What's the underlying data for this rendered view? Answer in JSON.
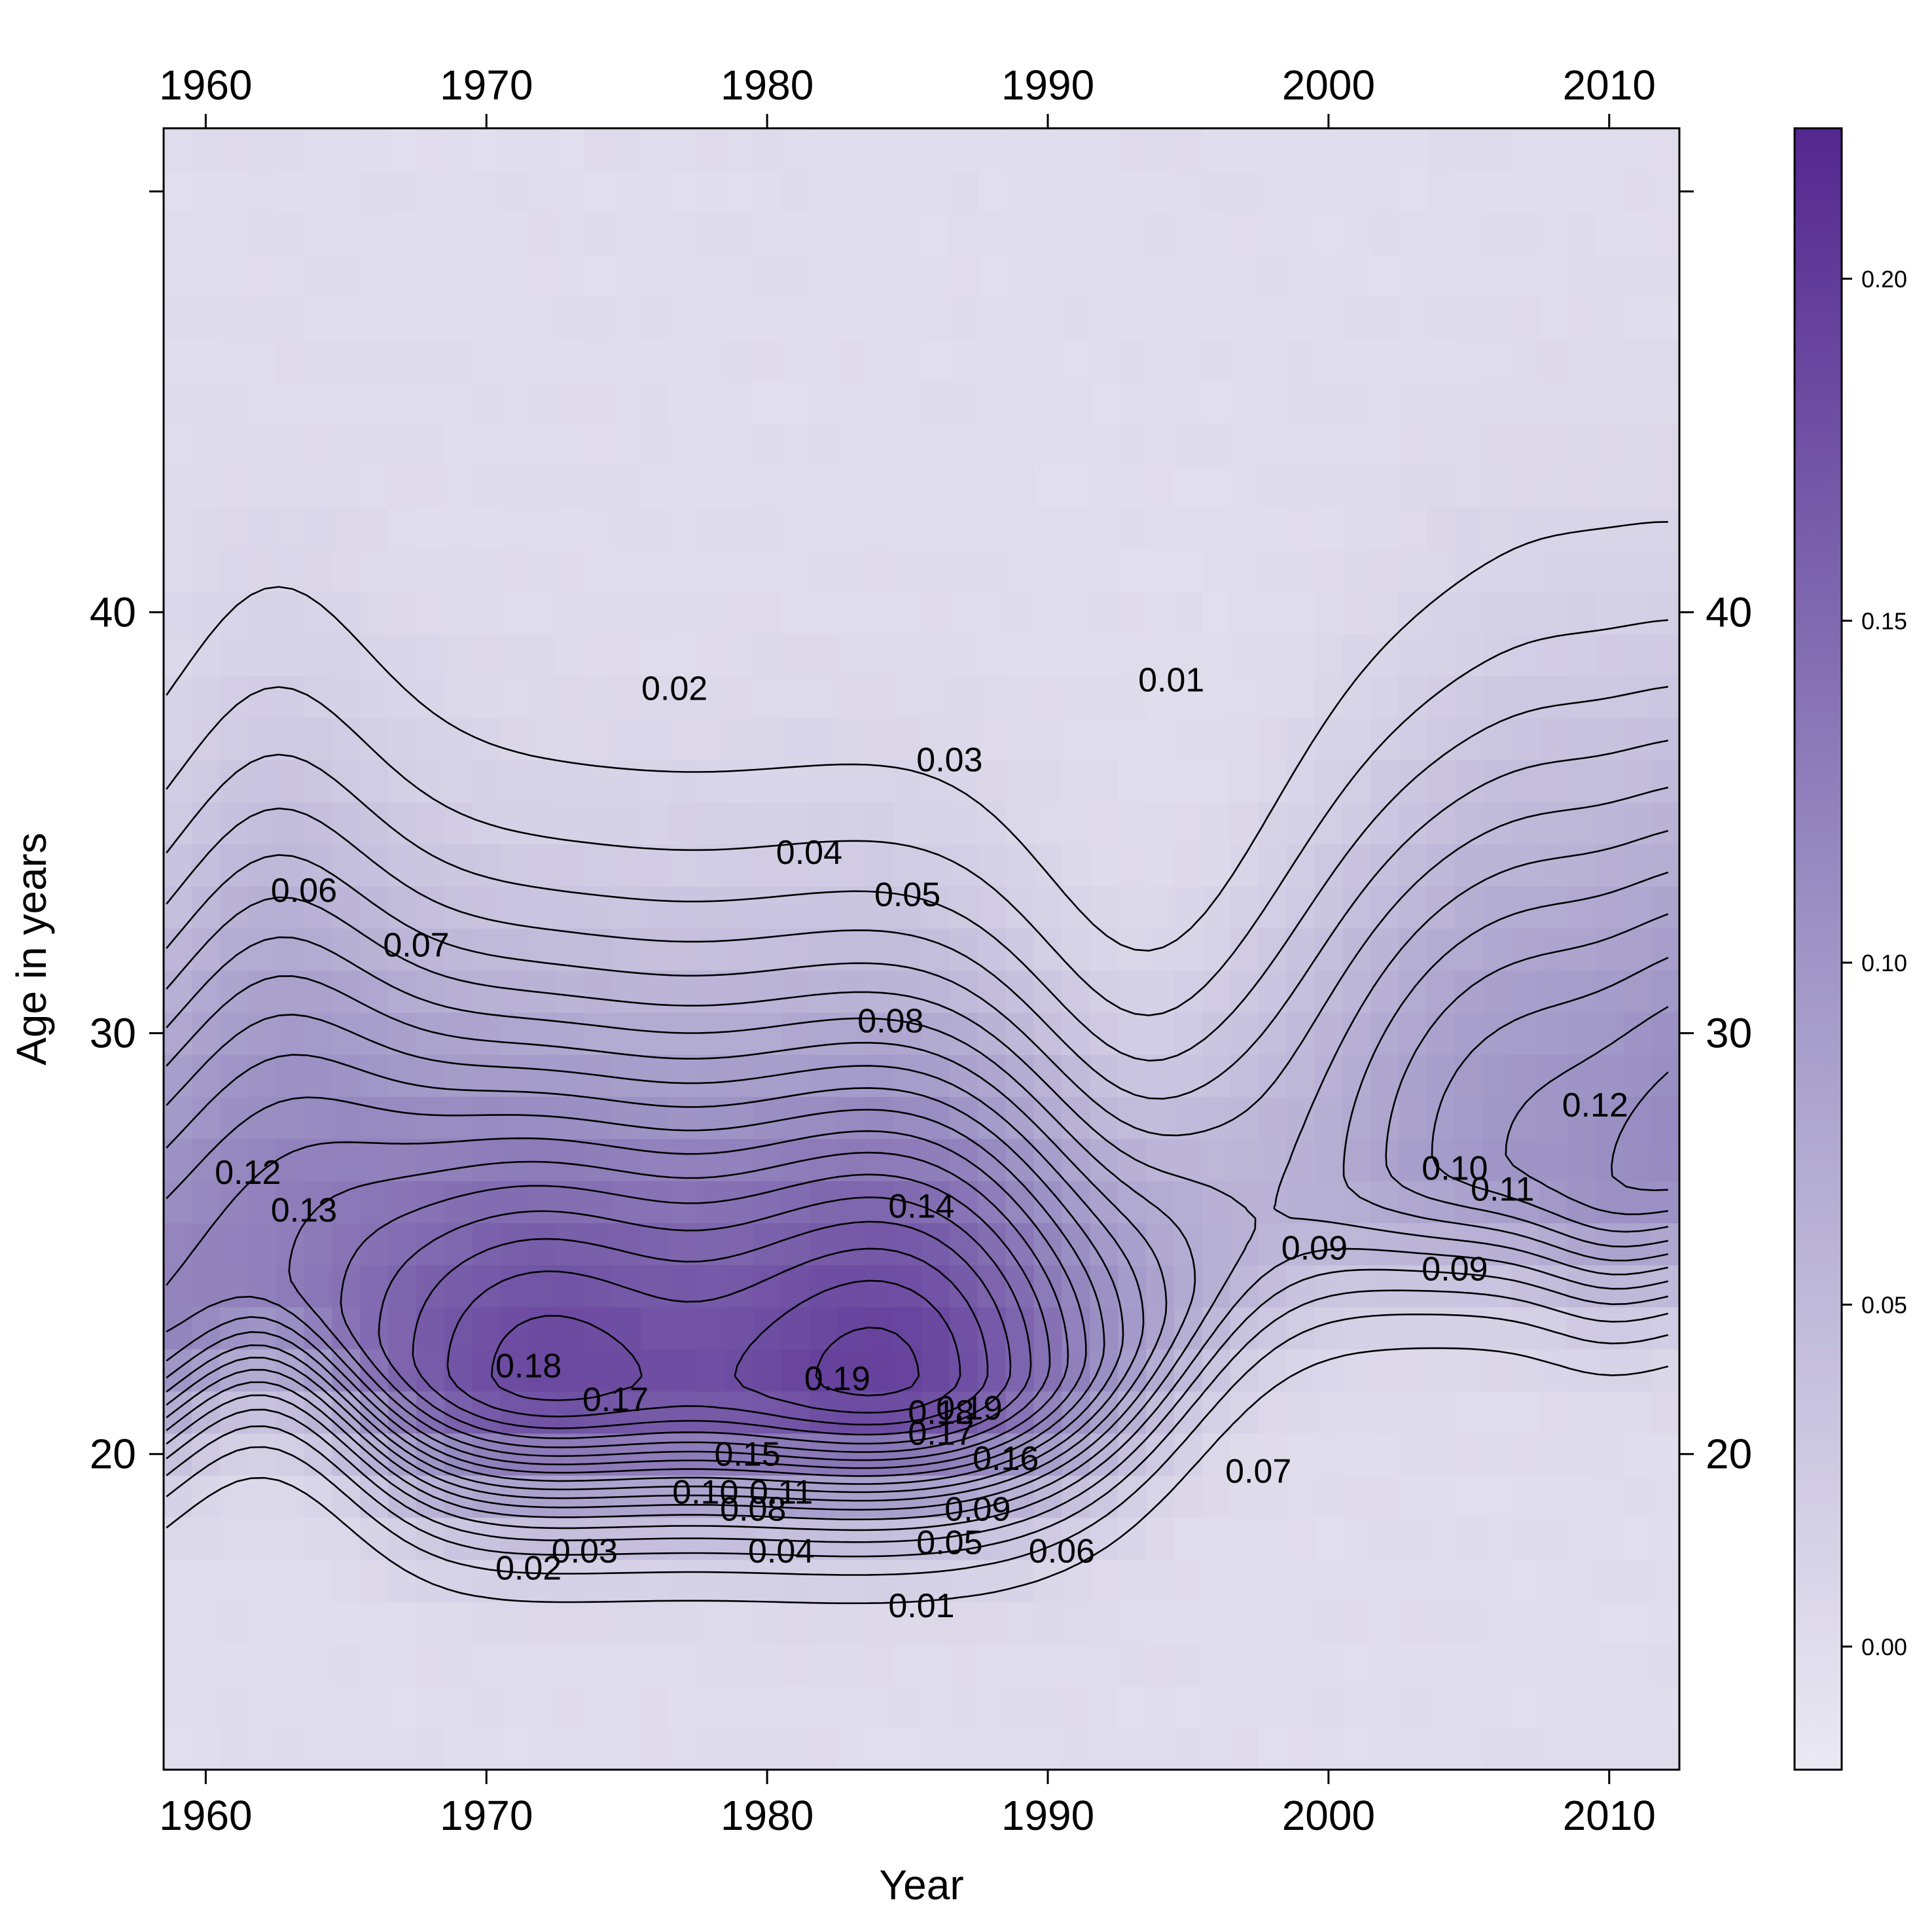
{
  "chart_data": {
    "type": "heatmap",
    "subtype": "contour-filled",
    "title": "",
    "xlabel": "Year",
    "ylabel": "Age in years",
    "xlim": [
      1958.5,
      2012.5
    ],
    "ylim": [
      12.5,
      51.5
    ],
    "x_ticks": [
      1960,
      1970,
      1980,
      1990,
      2000,
      2010
    ],
    "y_ticks": [
      20,
      30,
      40
    ],
    "x_tick_labels": [
      "1960",
      "1970",
      "1980",
      "1990",
      "2000",
      "2010"
    ],
    "y_tick_labels": [
      "20",
      "30",
      "40"
    ],
    "x_axis_top_mirror": true,
    "y_axis_right_mirror": true,
    "grid": false,
    "colorbar": {
      "position": "right",
      "range": [
        -0.018,
        0.222
      ],
      "ticks": [
        0.0,
        0.05,
        0.1,
        0.15,
        0.2
      ],
      "tick_labels": [
        "0.00",
        "0.05",
        "0.10",
        "0.15",
        "0.20"
      ],
      "color_low": "#ebe9f3",
      "color_high": "#54278f"
    },
    "contour_levels": [
      0.01,
      0.02,
      0.03,
      0.04,
      0.05,
      0.06,
      0.07,
      0.08,
      0.09,
      0.1,
      0.11,
      0.12,
      0.13,
      0.14,
      0.15,
      0.16,
      0.17,
      0.18,
      0.19
    ],
    "contour_labels": [
      {
        "text": "0.02",
        "x": 1976.7,
        "y": 38.2
      },
      {
        "text": "0.01",
        "x": 1994.4,
        "y": 38.4
      },
      {
        "text": "0.03",
        "x": 1986.5,
        "y": 36.5
      },
      {
        "text": "0.04",
        "x": 1981.5,
        "y": 34.3
      },
      {
        "text": "0.05",
        "x": 1985.0,
        "y": 33.3
      },
      {
        "text": "0.06",
        "x": 1963.5,
        "y": 33.4
      },
      {
        "text": "0.07",
        "x": 1967.5,
        "y": 32.1
      },
      {
        "text": "0.08",
        "x": 1984.4,
        "y": 30.3
      },
      {
        "text": "0.12",
        "x": 1961.5,
        "y": 26.7
      },
      {
        "text": "0.13",
        "x": 1963.5,
        "y": 25.8
      },
      {
        "text": "0.14",
        "x": 1985.5,
        "y": 25.9
      },
      {
        "text": "0.10",
        "x": 2004.5,
        "y": 26.8
      },
      {
        "text": "0.11",
        "x": 2006.2,
        "y": 26.3
      },
      {
        "text": "0.12",
        "x": 2009.5,
        "y": 28.3
      },
      {
        "text": "0.09",
        "x": 1999.5,
        "y": 24.9
      },
      {
        "text": "0.09",
        "x": 2004.5,
        "y": 24.4
      },
      {
        "text": "0.18",
        "x": 1971.5,
        "y": 22.1
      },
      {
        "text": "0.17",
        "x": 1974.6,
        "y": 21.3
      },
      {
        "text": "0.19",
        "x": 1982.5,
        "y": 21.8
      },
      {
        "text": "0.19",
        "x": 1987.2,
        "y": 21.1
      },
      {
        "text": "0.18",
        "x": 1986.2,
        "y": 21.0
      },
      {
        "text": "0.17",
        "x": 1986.2,
        "y": 20.5
      },
      {
        "text": "0.15",
        "x": 1979.3,
        "y": 20.0
      },
      {
        "text": "0.16",
        "x": 1988.5,
        "y": 19.9
      },
      {
        "text": "0.10",
        "x": 1977.8,
        "y": 19.1
      },
      {
        "text": "0.11",
        "x": 1980.5,
        "y": 19.1
      },
      {
        "text": "0.08",
        "x": 1979.5,
        "y": 18.7
      },
      {
        "text": "0.09",
        "x": 1987.5,
        "y": 18.7
      },
      {
        "text": "0.07",
        "x": 1997.5,
        "y": 19.6
      },
      {
        "text": "0.05",
        "x": 1986.5,
        "y": 17.9
      },
      {
        "text": "0.06",
        "x": 1990.5,
        "y": 17.7
      },
      {
        "text": "0.04",
        "x": 1980.5,
        "y": 17.7
      },
      {
        "text": "0.03",
        "x": 1973.5,
        "y": 17.7
      },
      {
        "text": "0.02",
        "x": 1971.5,
        "y": 17.3
      },
      {
        "text": "0.01",
        "x": 1985.5,
        "y": 16.4
      }
    ]
  }
}
